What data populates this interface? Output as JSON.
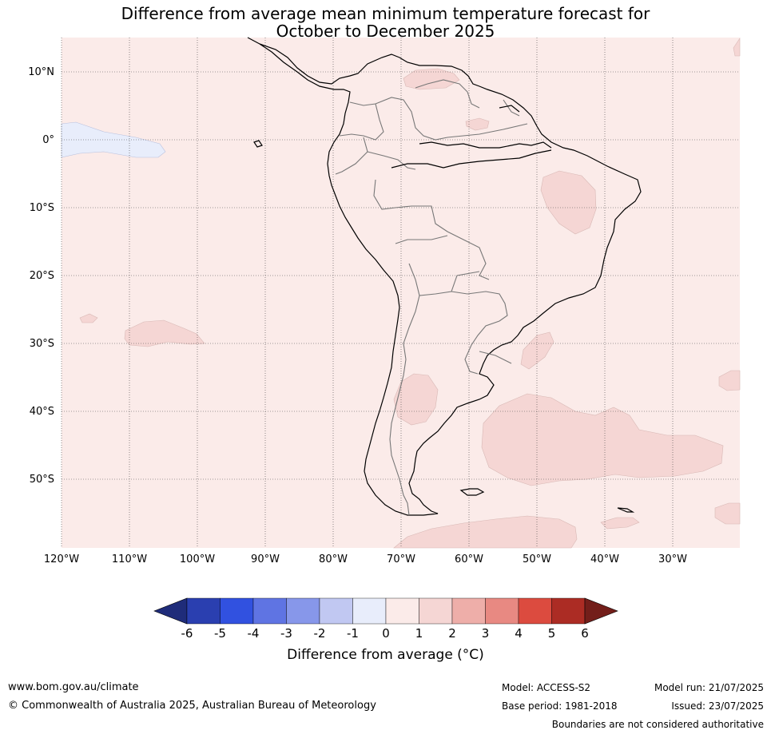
{
  "title": {
    "line1": "Difference from average mean minimum temperature forecast for",
    "line2": "October to December 2025"
  },
  "map": {
    "region": "South America",
    "lat_ticks": [
      "10°N",
      "0°",
      "10°S",
      "20°S",
      "30°S",
      "40°S",
      "50°S"
    ],
    "lon_ticks": [
      "120°W",
      "110°W",
      "100°W",
      "90°W",
      "80°W",
      "70°W",
      "60°W",
      "50°W",
      "40°W",
      "30°W"
    ],
    "background_category": "0 to 1",
    "colors": {
      "ocean_bg": "#fbebe9",
      "warm_1_2": "#f5d6d4",
      "cool_m1_0": "#e8edfb",
      "coast": "#000000",
      "borders": "#777777",
      "grid": "#444444"
    }
  },
  "colorbar": {
    "ticks": [
      "-6",
      "-5",
      "-4",
      "-3",
      "-2",
      "-1",
      "0",
      "1",
      "2",
      "3",
      "4",
      "5",
      "6"
    ],
    "colors": [
      "#1f2c7a",
      "#2a3fb0",
      "#3151e0",
      "#5f74e3",
      "#8797ea",
      "#c1c8f2",
      "#e8edfb",
      "#fbebe9",
      "#f5d6d4",
      "#eeaea9",
      "#e88982",
      "#dc4b3f",
      "#ac2c24",
      "#731e1a"
    ],
    "label": "Difference from average (°C)"
  },
  "footer": {
    "website": "www.bom.gov.au/climate",
    "copyright": "© Commonwealth of Australia 2025, Australian Bureau of Meteorology",
    "model": "Model: ACCESS-S2",
    "base_period": "Base period: 1981-2018",
    "model_run": "Model run: 21/07/2025",
    "issued": "Issued: 23/07/2025",
    "disclaimer": "Boundaries are not considered authoritative"
  }
}
